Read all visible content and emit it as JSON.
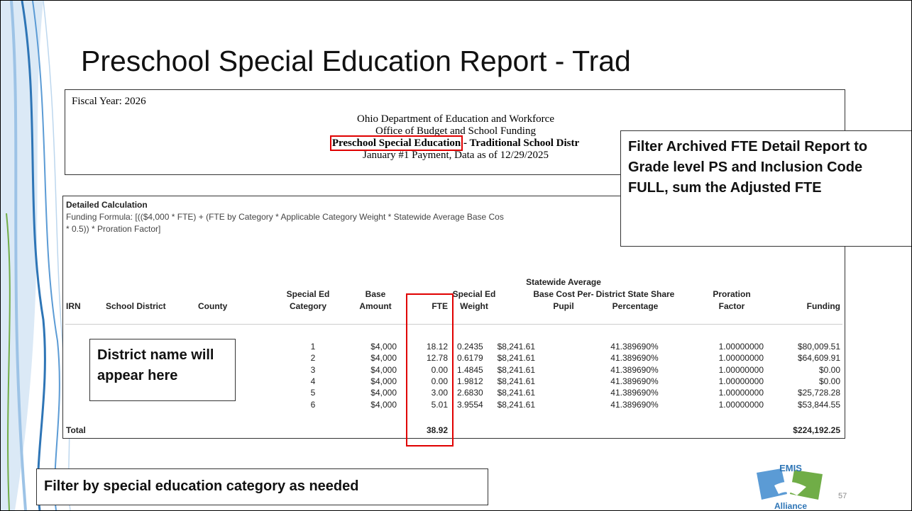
{
  "title": "Preschool Special Education Report - Trad",
  "report_header": {
    "fiscal_year": "Fiscal Year: 2026",
    "lines": [
      "Ohio Department of Education and Workforce",
      "Office of Budget and School Funding"
    ],
    "report_name": "Preschool Special Education",
    "report_suffix": "- Traditional School Distr",
    "payment": "January #1 Payment, Data as of 12/29/2025"
  },
  "detail": {
    "heading": "Detailed Calculation",
    "formula": [
      "Funding Formula: [(($4,000 * FTE) + (FTE by Category * Applicable Category Weight * Statewide Average Base Cos",
      "* 0.5)) * Proration Factor]"
    ],
    "table": {
      "headers": [
        "IRN",
        "School District",
        "County",
        "Special Ed Category",
        "Base Amount",
        "FTE",
        "Special Ed Weight",
        "Statewide Average Base Cost Per-Pupil",
        "District State Share Percentage",
        "Proration Factor",
        "Funding"
      ],
      "rows": [
        [
          "1",
          "$4,000",
          "18.12",
          "0.2435",
          "$8,241.61",
          "41.389690%",
          "1.00000000",
          "$80,009.51"
        ],
        [
          "2",
          "$4,000",
          "12.78",
          "0.6179",
          "$8,241.61",
          "41.389690%",
          "1.00000000",
          "$64,609.91"
        ],
        [
          "3",
          "$4,000",
          "0.00",
          "1.4845",
          "$8,241.61",
          "41.389690%",
          "1.00000000",
          "$0.00"
        ],
        [
          "4",
          "$4,000",
          "0.00",
          "1.9812",
          "$8,241.61",
          "41.389690%",
          "1.00000000",
          "$0.00"
        ],
        [
          "5",
          "$4,000",
          "3.00",
          "2.6830",
          "$8,241.61",
          "41.389690%",
          "1.00000000",
          "$25,728.28"
        ],
        [
          "6",
          "$4,000",
          "5.01",
          "3.9554",
          "$8,241.61",
          "41.389690%",
          "1.00000000",
          "$53,844.55"
        ]
      ],
      "total": {
        "label": "Total",
        "fte": "38.92",
        "funding": "$224,192.25"
      }
    }
  },
  "callouts": {
    "filter_archived": "Filter Archived FTE Detail Report to Grade level PS and Inclusion Code FULL, sum the Adjusted FTE",
    "district_name": "District name will appear here",
    "filter_category": "Filter by special education category as needed"
  },
  "logo": {
    "top": "EMIS",
    "bottom": "Alliance"
  },
  "page_number": "57"
}
